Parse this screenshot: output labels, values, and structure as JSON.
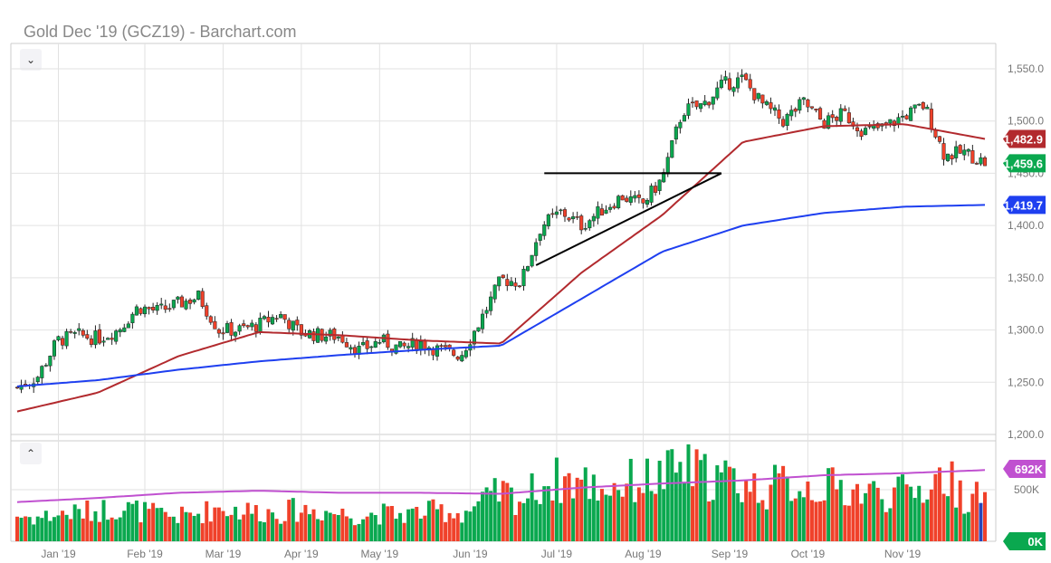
{
  "title": "Gold Dec '19 (GCZ19) - Barchart.com",
  "chart_data": {
    "type": "candlestick",
    "title": "Gold Dec '19 (GCZ19) - Barchart.com",
    "price_ticks": [
      "1,200.0",
      "1,250.0",
      "1,300.0",
      "1,350.0",
      "1,400.0",
      "1,450.0",
      "1,500.0",
      "1,550.0"
    ],
    "price_tick_values": [
      1200,
      1250,
      1300,
      1350,
      1400,
      1450,
      1500,
      1550
    ],
    "ylim": [
      1200,
      1580
    ],
    "x_ticks": [
      "Jan '19",
      "Feb '19",
      "Mar '19",
      "Apr '19",
      "May '19",
      "Jun '19",
      "Jul '19",
      "Aug '19",
      "Sep '19",
      "Oct '19",
      "Nov '19"
    ],
    "x_tick_day_index": [
      10,
      31,
      50,
      69,
      88,
      110,
      131,
      152,
      173,
      192,
      215
    ],
    "trading_days": 236,
    "weekly_close": [
      1245,
      1255,
      1290,
      1295,
      1292,
      1300,
      1322,
      1318,
      1325,
      1332,
      1300,
      1300,
      1305,
      1315,
      1298,
      1295,
      1294,
      1280,
      1290,
      1282,
      1288,
      1280,
      1276,
      1310,
      1348,
      1346,
      1400,
      1413,
      1400,
      1415,
      1428,
      1420,
      1445,
      1510,
      1515,
      1535,
      1540,
      1515,
      1500,
      1518,
      1498,
      1507,
      1490,
      1494,
      1505,
      1515,
      1467,
      1470,
      1460
    ],
    "ma50": {
      "name": "50-day MA",
      "color": "#b22a2e",
      "points": [
        1222,
        1240,
        1275,
        1298,
        1295,
        1290,
        1287,
        1355,
        1410,
        1480,
        1495,
        1497,
        1482.9
      ]
    },
    "ma200": {
      "name": "200-day MA",
      "color": "#1e3ff0",
      "points": [
        1246,
        1252,
        1262,
        1270,
        1276,
        1281,
        1285,
        1330,
        1375,
        1400,
        1412,
        1418,
        1419.7
      ]
    },
    "last_price": {
      "value": 1459.6,
      "label": "1,459.6",
      "color": "#0aa84f"
    },
    "ma50_last": {
      "value": 1482.9,
      "label": "1,482.9"
    },
    "ma200_last": {
      "value": 1419.7,
      "label": "1,419.7"
    },
    "trendlines": [
      {
        "from": [
          128,
          1450
        ],
        "to": [
          171,
          1450
        ]
      },
      {
        "from": [
          126,
          1362
        ],
        "to": [
          171,
          1450
        ]
      }
    ],
    "volume": {
      "ticks": [
        "0K",
        "500K"
      ],
      "tick_values": [
        0,
        500
      ],
      "ylim": [
        0,
        1000
      ],
      "avg_line_points": [
        380,
        420,
        470,
        490,
        470,
        470,
        460,
        520,
        560,
        590,
        640,
        660,
        690
      ],
      "avg_label": "692K",
      "zero_label": "0K",
      "weekly_avg": [
        250,
        230,
        260,
        280,
        300,
        330,
        300,
        260,
        240,
        270,
        330,
        300,
        290,
        280,
        310,
        300,
        270,
        250,
        270,
        260,
        280,
        300,
        270,
        360,
        480,
        400,
        560,
        600,
        580,
        520,
        560,
        600,
        620,
        720,
        640,
        620,
        560,
        500,
        560,
        540,
        530,
        510,
        480,
        460,
        470,
        520,
        640,
        440,
        420
      ]
    }
  }
}
